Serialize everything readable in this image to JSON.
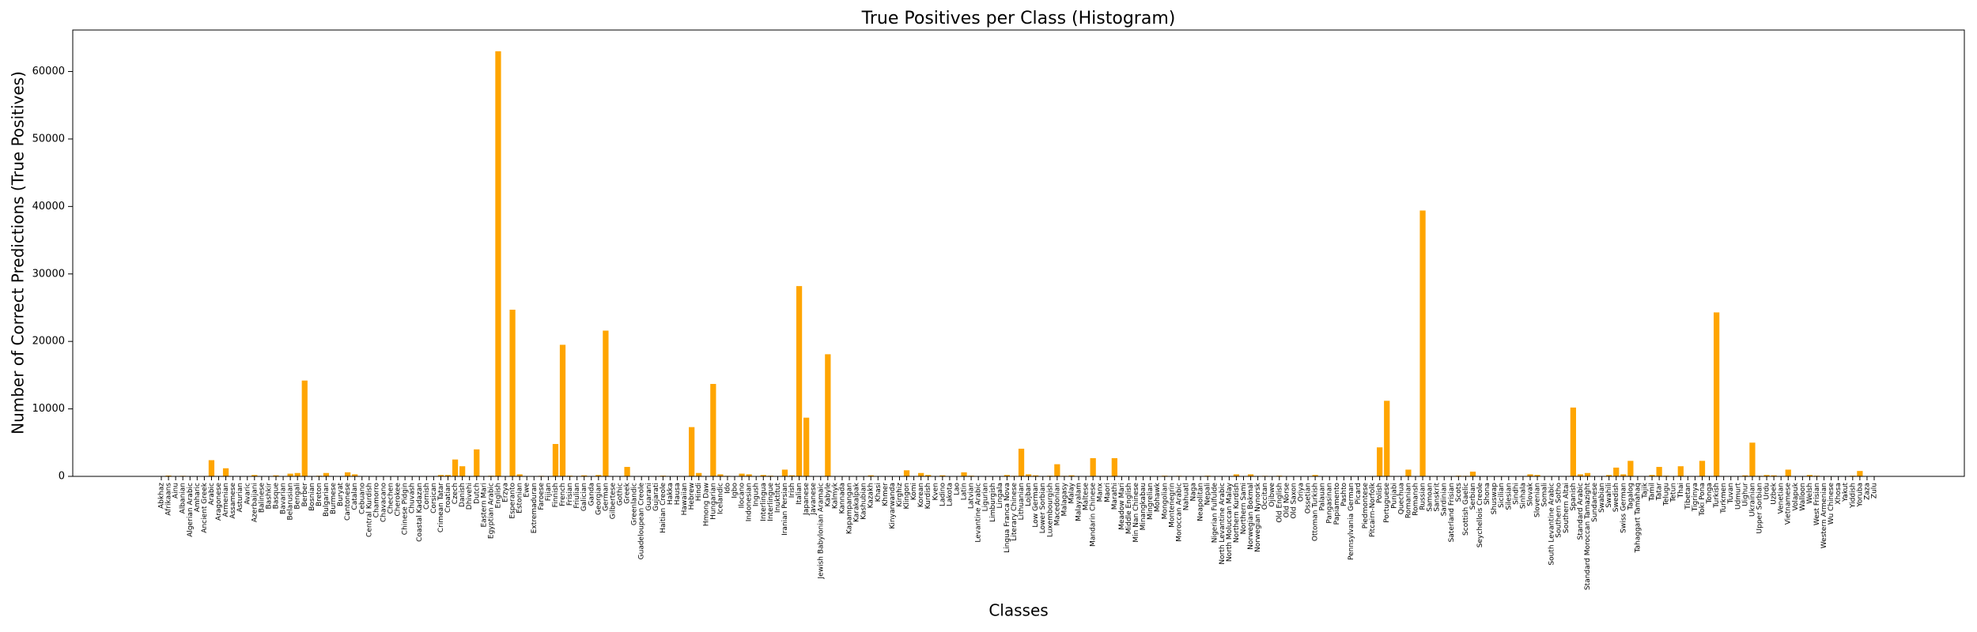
{
  "chart_data": {
    "type": "bar",
    "title": "True Positives per Class (Histogram)",
    "xlabel": "Classes",
    "ylabel": "Number of Correct Predictions (True Positives)",
    "categories": [
      "Abkhaz",
      "Afrikaans",
      "Ainu",
      "Albanian",
      "Algerian Arabic",
      "Amharic",
      "Ancient Greek",
      "Arabic",
      "Aragonese",
      "Armenian",
      "Assamese",
      "Asturian",
      "Avaric",
      "Azerbaijani",
      "Balinese",
      "Bashkir",
      "Basque",
      "Bavarian",
      "Belarusian",
      "Bengali",
      "Berber",
      "Bosnian",
      "Breton",
      "Bulgarian",
      "Burmese",
      "Buryat",
      "Cantonese",
      "Catalan",
      "Cebuano",
      "Central Kurdish",
      "Chamorro",
      "Chavacano",
      "Chechen",
      "Cherokee",
      "Chinese Pidgin",
      "Chuvash",
      "Coastal Kadazan",
      "Cornish",
      "Corsican",
      "Crimean Tatar",
      "Croatian",
      "Czech",
      "Danish",
      "Dhivehi",
      "Dutch",
      "Eastern Mari",
      "Egyptian Arabic",
      "English",
      "Erzya",
      "Esperanto",
      "Estonian",
      "Ewe",
      "Extremaduran",
      "Faroese",
      "Fijian",
      "Finnish",
      "French",
      "Frisian",
      "Friulian",
      "Galician",
      "Ganda",
      "Georgian",
      "German",
      "Gilbertese",
      "Gothic",
      "Greek",
      "Greenlandic",
      "Guadeloupean Creole",
      "Guarani",
      "Gujarati",
      "Haitian Creole",
      "Hakka",
      "Hausa",
      "Hawaiian",
      "Hebrew",
      "Hindi",
      "Hmong Daw",
      "Hungarian",
      "Icelandic",
      "Ido",
      "Igbo",
      "Ilocano",
      "Indonesian",
      "Ingush",
      "Interlingua",
      "Interlingue",
      "Inuktitut",
      "Iranian Persian",
      "Irish",
      "Italian",
      "Japanese",
      "Javanese",
      "Jewish Babylonian Aramaic",
      "Kabyle",
      "Kalmyk",
      "Kannada",
      "Kapampangan",
      "Karakalpak",
      "Kashubian",
      "Kazakh",
      "Khasi",
      "Khmer",
      "Kinyarwanda",
      "Kirghiz",
      "Klingon",
      "Komi",
      "Korean",
      "Kurdish",
      "Kven",
      "Ladino",
      "Lakota",
      "Lao",
      "Latin",
      "Latvian",
      "Levantine Arabic",
      "Ligurian",
      "Limburgish",
      "Lingala",
      "Lingua Franca Nova",
      "Literary Chinese",
      "Lithuanian",
      "Lojban",
      "Low German",
      "Lower Sorbian",
      "Luxembourgish",
      "Macedonian",
      "Malagasy",
      "Malay",
      "Malayalam",
      "Maltese",
      "Mandarin Chinese",
      "Manx",
      "Maori",
      "Marathi",
      "Meadow Mari",
      "Middle English",
      "Min Nan Chinese",
      "Minangkabau",
      "Mingrelian",
      "Mohawk",
      "Mongolian",
      "Montenegrin",
      "Moroccan Arabic",
      "Nahuatl",
      "Naga",
      "Neapolitan",
      "Nepali",
      "Nigerian Fulfulde",
      "North Levantine Arabic",
      "North Moluccan Malay",
      "Northern Kurdish",
      "Northern Sami",
      "Norwegian Bokmal",
      "Norwegian Nynorsk",
      "Occitan",
      "Ojibwe",
      "Old English",
      "Old Norse",
      "Old Saxon",
      "Oriya",
      "Ossetian",
      "Ottoman Turkish",
      "Palauan",
      "Pangasinan",
      "Papiamento",
      "Pashto",
      "Pennsylvania German",
      "Picard",
      "Piedmontese",
      "Pitcairn-Norfolk",
      "Polish",
      "Portuguese",
      "Punjabi",
      "Quechua",
      "Romanian",
      "Romansh",
      "Russian",
      "Samoan",
      "Sanskrit",
      "Sardinian",
      "Saterland Frisian",
      "Scots",
      "Scottish Gaelic",
      "Serbian",
      "Seychellois Creole",
      "Shona",
      "Shuswap",
      "Sicilian",
      "Silesian",
      "Sindhi",
      "Sinhala",
      "Slovak",
      "Slovenian",
      "Somali",
      "South Levantine Arabic",
      "Southern Sotho",
      "Southern Altai",
      "Spanish",
      "Standard Arabic",
      "Standard Moroccan Tamazight",
      "Sundanese",
      "Swabian",
      "Swahili",
      "Swedish",
      "Swiss German",
      "Tagalog",
      "Tahaggart Tamahaq",
      "Tajik",
      "Tamil",
      "Tatar",
      "Telugu",
      "Tetun",
      "Thai",
      "Tibetan",
      "Tigrinya",
      "Toki Pona",
      "Tonga",
      "Turkish",
      "Turkmen",
      "Tuvan",
      "Udmurt",
      "Uighur",
      "Ukrainian",
      "Upper Sorbian",
      "Urdu",
      "Uzbek",
      "Venetian",
      "Vietnamese",
      "Volapuk",
      "Walloon",
      "Welsh",
      "West Frisian",
      "Western Armenian",
      "Wu Chinese",
      "Xhosa",
      "Yakut",
      "Yiddish",
      "Yoruba",
      "Zaza",
      "Zulu"
    ],
    "values": [
      50,
      120,
      0,
      80,
      30,
      20,
      60,
      2400,
      10,
      1200,
      20,
      30,
      0,
      200,
      0,
      40,
      150,
      10,
      400,
      500,
      14200,
      60,
      100,
      500,
      30,
      0,
      600,
      300,
      20,
      40,
      0,
      10,
      20,
      30,
      0,
      50,
      10,
      60,
      30,
      200,
      200,
      2500,
      1500,
      10,
      4000,
      20,
      100,
      63000,
      10,
      24700,
      300,
      0,
      10,
      80,
      0,
      4800,
      19500,
      100,
      50,
      150,
      0,
      200,
      21600,
      0,
      30,
      1400,
      20,
      10,
      40,
      60,
      100,
      20,
      60,
      20,
      7300,
      500,
      40,
      13700,
      300,
      80,
      10,
      400,
      300,
      0,
      200,
      100,
      10,
      1000,
      150,
      28200,
      8700,
      30,
      10,
      18100,
      0,
      20,
      10,
      0,
      50,
      150,
      0,
      60,
      30,
      20,
      900,
      10,
      500,
      200,
      10,
      150,
      30,
      20,
      600,
      100,
      40,
      60,
      30,
      10,
      200,
      80,
      4100,
      300,
      150,
      40,
      100,
      1800,
      80,
      150,
      60,
      40,
      2700,
      20,
      50,
      2700,
      40,
      30,
      60,
      0,
      20,
      10,
      100,
      30,
      80,
      50,
      0,
      40,
      100,
      0,
      20,
      10,
      300,
      20,
      300,
      60,
      80,
      10,
      100,
      40,
      0,
      20,
      30,
      200,
      0,
      10,
      50,
      20,
      60,
      10,
      40,
      0,
      4300,
      11200,
      60,
      30,
      1000,
      30,
      39400,
      10,
      60,
      30,
      10,
      100,
      80,
      700,
      20,
      10,
      0,
      60,
      40,
      30,
      20,
      300,
      200,
      10,
      20,
      10,
      0,
      10200,
      300,
      500,
      40,
      20,
      200,
      1300,
      300,
      2300,
      0,
      40,
      200,
      1400,
      100,
      20,
      1500,
      30,
      10,
      2300,
      10,
      24300,
      60,
      10,
      40,
      150,
      5000,
      80,
      200,
      150,
      60,
      1000,
      50,
      20,
      200,
      100,
      30,
      60,
      20,
      10,
      100,
      800,
      10,
      60
    ],
    "color": "#ffa500",
    "ylim": [
      0,
      66150
    ],
    "yticks": [
      0,
      10000,
      20000,
      30000,
      40000,
      50000,
      60000
    ],
    "grid": false
  }
}
